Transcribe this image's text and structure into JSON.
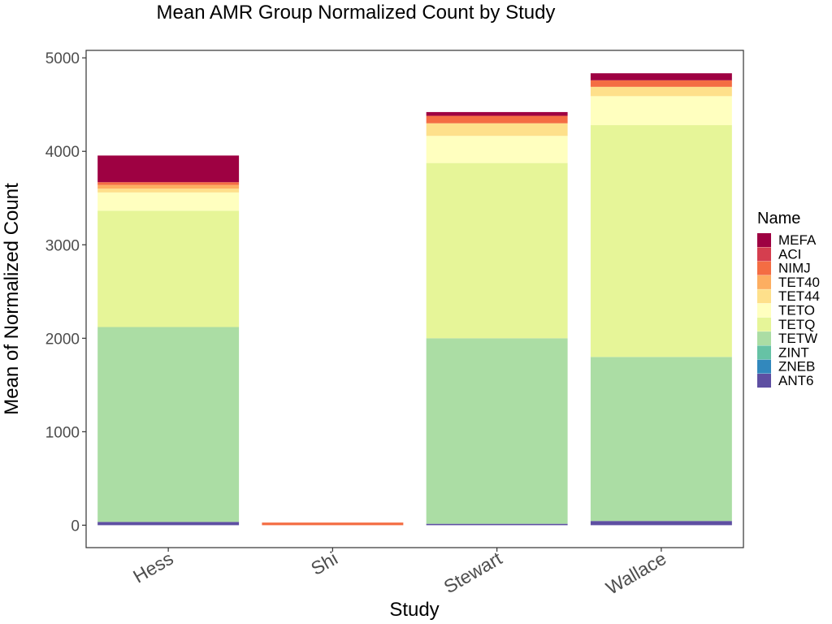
{
  "chart_data": {
    "type": "bar",
    "stacked": true,
    "title": "Mean AMR Group Normalized Count by Study",
    "xlabel": "Study",
    "ylabel": "Mean of Normalized Count",
    "categories": [
      "Hess",
      "Shi",
      "Stewart",
      "Wallace"
    ],
    "ylim": [
      -240,
      5080
    ],
    "yticks": [
      0,
      1000,
      2000,
      3000,
      4000,
      5000
    ],
    "yticks_labels": [
      "0",
      "1000",
      "2000",
      "3000",
      "4000",
      "5000"
    ],
    "grid": false,
    "legend": {
      "title": "Name",
      "position": "right"
    },
    "series": [
      {
        "name": "ANT6",
        "color": "#5E4FA2",
        "values": [
          35,
          0,
          15,
          45
        ]
      },
      {
        "name": "ZNEB",
        "color": "#3288BD",
        "values": [
          0,
          0,
          0,
          0
        ]
      },
      {
        "name": "ZINT",
        "color": "#66C2A5",
        "values": [
          0,
          0,
          0,
          0
        ]
      },
      {
        "name": "TETW",
        "color": "#ABDDA4",
        "values": [
          2085,
          0,
          1985,
          1755
        ]
      },
      {
        "name": "TETQ",
        "color": "#E6F598",
        "values": [
          1245,
          0,
          1875,
          2480
        ]
      },
      {
        "name": "TETO",
        "color": "#FFFFBF",
        "values": [
          195,
          0,
          290,
          310
        ]
      },
      {
        "name": "TET44",
        "color": "#FEE08B",
        "values": [
          40,
          0,
          135,
          100
        ]
      },
      {
        "name": "TET40",
        "color": "#FDAE61",
        "values": [
          40,
          0,
          0,
          0
        ]
      },
      {
        "name": "NIMJ",
        "color": "#F46D43",
        "values": [
          30,
          28,
          80,
          70
        ]
      },
      {
        "name": "ACI",
        "color": "#D53E4F",
        "values": [
          0,
          0,
          0,
          0
        ]
      },
      {
        "name": "MEFA",
        "color": "#9E0142",
        "values": [
          285,
          0,
          40,
          75
        ]
      }
    ],
    "legend_order": [
      "MEFA",
      "ACI",
      "NIMJ",
      "TET40",
      "TET44",
      "TETO",
      "TETQ",
      "TETW",
      "ZINT",
      "ZNEB",
      "ANT6"
    ]
  }
}
